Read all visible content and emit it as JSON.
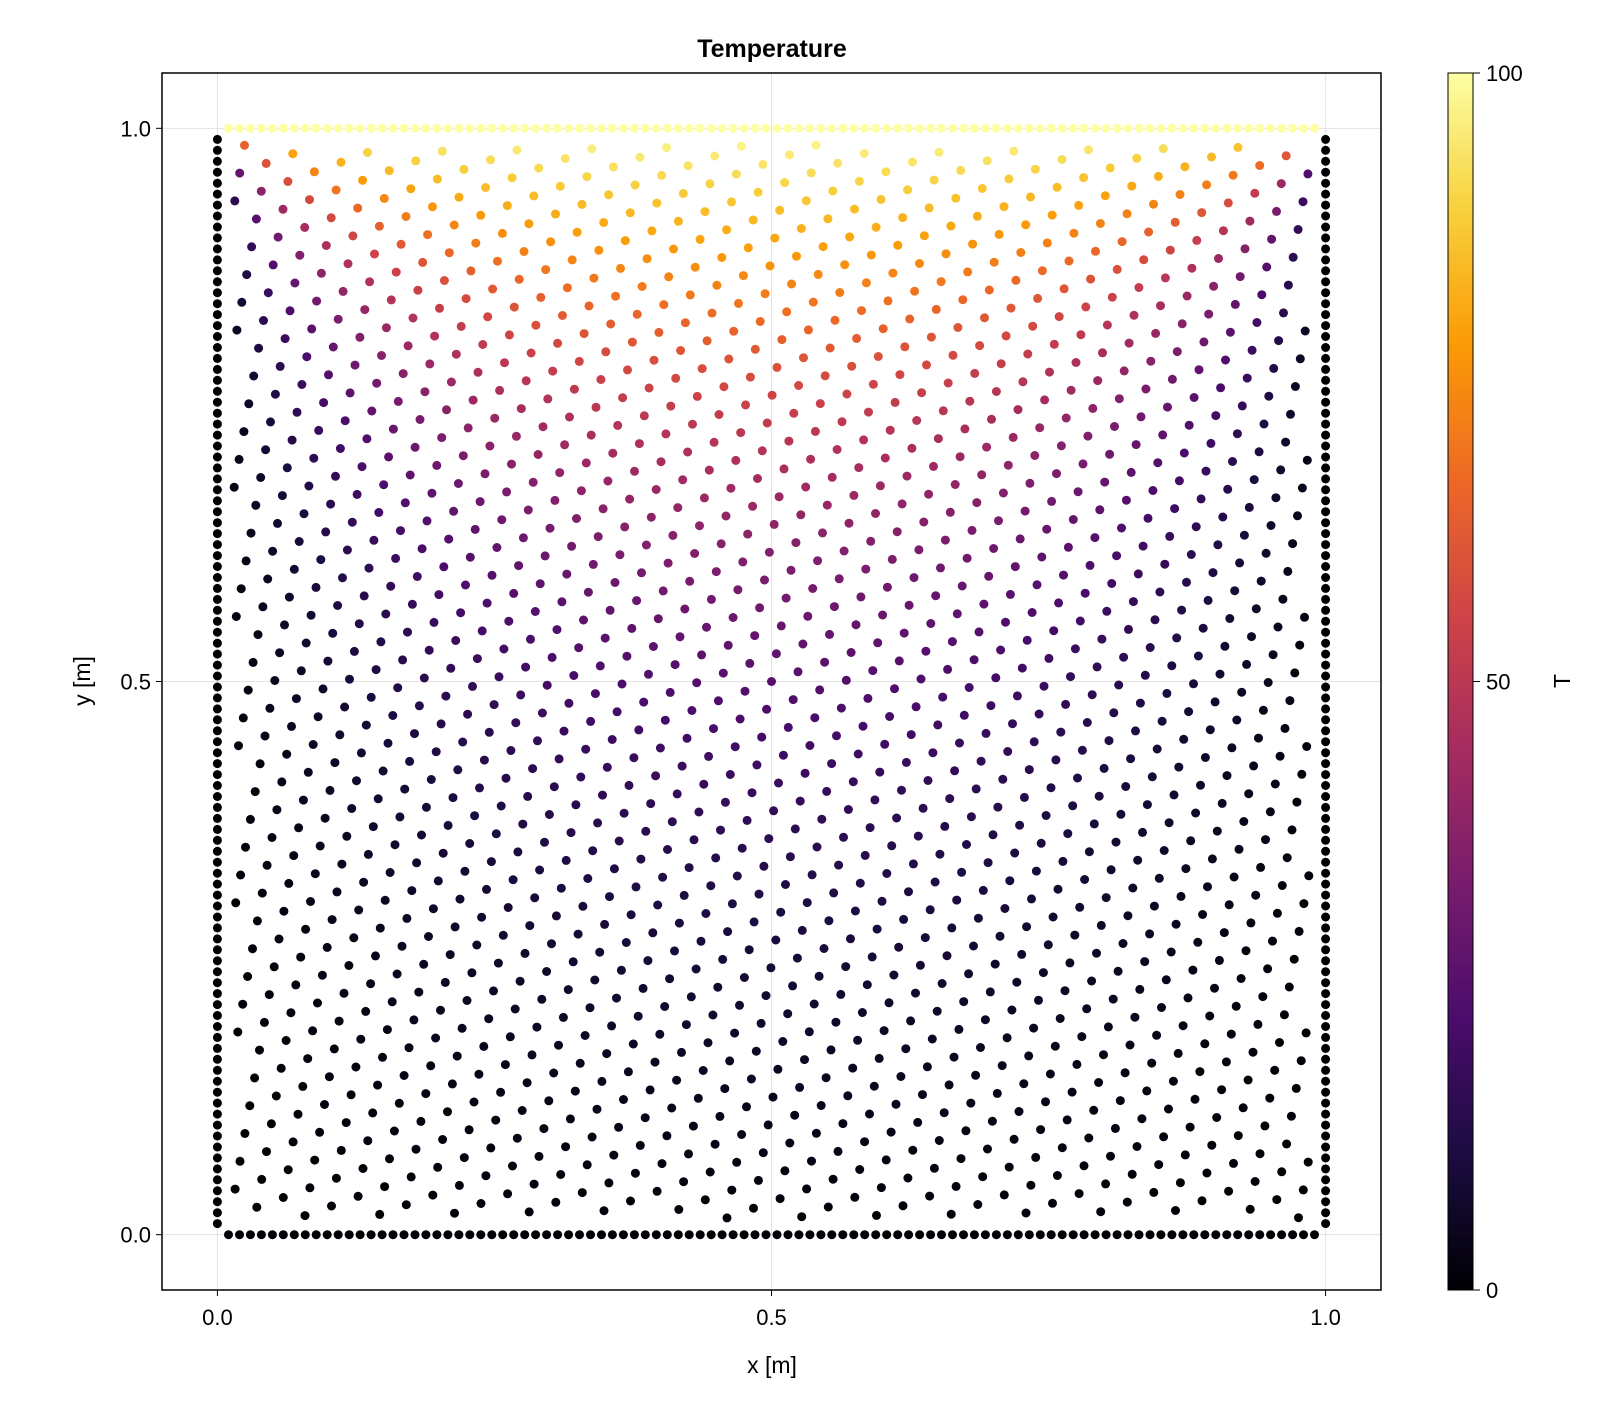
{
  "chart_data": {
    "type": "scatter",
    "title": "Temperature",
    "xlabel": "x [m]",
    "ylabel": "y [m]",
    "xlim": [
      -0.05,
      1.05
    ],
    "ylim": [
      -0.05,
      1.05
    ],
    "xticks": [
      0.0,
      0.5,
      1.0
    ],
    "xtick_labels": [
      "0.0",
      "0.5",
      "1.0"
    ],
    "yticks": [
      0.0,
      0.5,
      1.0
    ],
    "ytick_labels": [
      "0.0",
      "0.5",
      "1.0"
    ],
    "grid": true,
    "colormap": "inferno",
    "colorbar": {
      "label": "T",
      "range": [
        0,
        100
      ],
      "ticks": [
        0,
        50,
        100
      ],
      "tick_labels": [
        "0",
        "50",
        "100"
      ],
      "placement": "right"
    },
    "field_description": {
      "domain": "unit square [0,1] x [0,1]",
      "boundary_top_T": 100,
      "boundary_left_T": 0,
      "boundary_right_T": 0,
      "boundary_bottom_T": 0,
      "interior_spacing": 0.025
    },
    "colors": {
      "stops": [
        "#000004",
        "#1b0c41",
        "#4a0c6b",
        "#781c6d",
        "#a52c60",
        "#cf4446",
        "#ed6925",
        "#fb9b06",
        "#f7d13d",
        "#fcffa4"
      ],
      "axis": "#000000",
      "grid": "#e3e3e3"
    }
  }
}
